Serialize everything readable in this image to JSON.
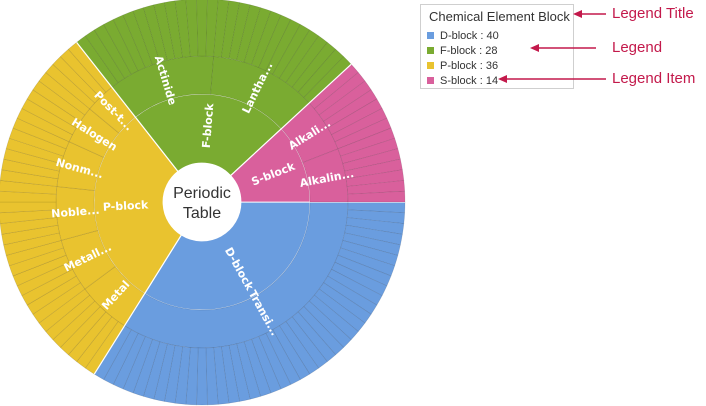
{
  "chart_data": {
    "type": "sunburst",
    "center_label_lines": [
      "Periodic",
      "Table"
    ],
    "legend": {
      "title": "Chemical Element Block",
      "items": [
        {
          "name": "D-block",
          "value": 40,
          "color": "#6a9ddf",
          "text": "D-block : 40"
        },
        {
          "name": "F-block",
          "value": 28,
          "color": "#7aab31",
          "text": "F-block : 28"
        },
        {
          "name": "P-block",
          "value": 36,
          "color": "#e9c32f",
          "text": "P-block : 36"
        },
        {
          "name": "S-block",
          "value": 14,
          "color": "#d9609c",
          "text": "S-block : 14"
        }
      ]
    },
    "blocks": [
      {
        "name": "D-block",
        "label": "D-block",
        "value": 40,
        "color": "#6a9ddf",
        "children": [
          {
            "label": "Transi...",
            "value": 40
          }
        ]
      },
      {
        "name": "P-block",
        "label": "P-block",
        "value": 36,
        "color": "#e9c32f",
        "children": [
          {
            "label": "Metal",
            "value": 7
          },
          {
            "label": "Metall...",
            "value": 7
          },
          {
            "label": "Noble...",
            "value": 7
          },
          {
            "label": "Nonm...",
            "value": 6
          },
          {
            "label": "Halogen",
            "value": 5
          },
          {
            "label": "Post-t...",
            "value": 4
          }
        ]
      },
      {
        "name": "F-block",
        "label": "F-block",
        "value": 28,
        "color": "#7aab31",
        "children": [
          {
            "label": "Actinide",
            "value": 14
          },
          {
            "label": "Lantha...",
            "value": 14
          }
        ]
      },
      {
        "name": "S-block",
        "label": "S-block",
        "value": 14,
        "color": "#d9609c",
        "children": [
          {
            "label": "Alkali...",
            "value": 7
          },
          {
            "label": "Alkalin...",
            "value": 7
          }
        ]
      }
    ]
  },
  "annotations": {
    "legend_title": "Legend Title",
    "legend": "Legend",
    "legend_item": "Legend Item",
    "color": "#c3194b"
  }
}
